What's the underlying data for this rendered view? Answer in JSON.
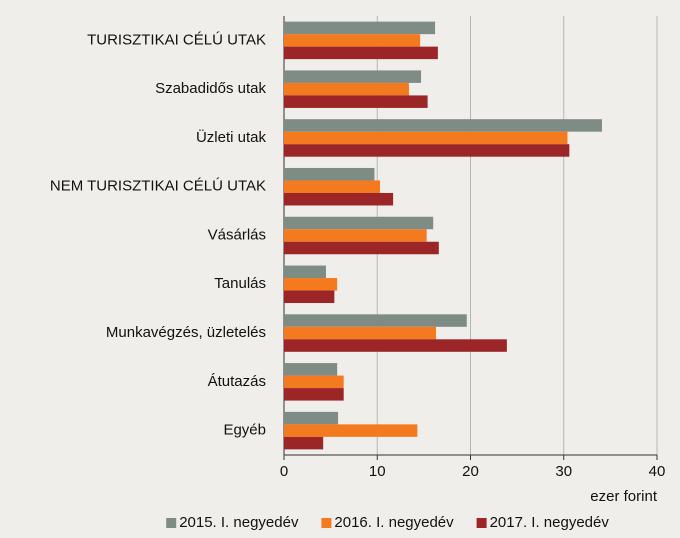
{
  "chart_data": {
    "type": "hbar",
    "categories": [
      "TURISZTIKAI CÉLÚ UTAK",
      "Szabadidős utak",
      "Üzleti utak",
      "NEM TURISZTIKAI CÉLÚ UTAK",
      "Vásárlás",
      "Tanulás",
      "Munkavégzés, üzletelés",
      "Átutazás",
      "Egyéb"
    ],
    "series": [
      {
        "name": "2015. I. negyedév",
        "color": "#7f8c85",
        "values": [
          16.2,
          14.7,
          34.1,
          9.7,
          16.0,
          4.5,
          19.6,
          5.7,
          5.8
        ]
      },
      {
        "name": "2016. I. negyedév",
        "color": "#f47a20",
        "values": [
          14.6,
          13.4,
          30.4,
          10.3,
          15.3,
          5.7,
          16.3,
          6.4,
          14.3
        ]
      },
      {
        "name": "2017. I. negyedév",
        "color": "#9b2527",
        "values": [
          16.5,
          15.4,
          30.6,
          11.7,
          16.6,
          5.4,
          23.9,
          6.4,
          4.2
        ]
      }
    ],
    "xlim": [
      0,
      40
    ],
    "xticks": [
      0,
      10,
      20,
      30,
      40
    ],
    "xlabel": "ezer forint",
    "grid": true,
    "legend": "bottom"
  }
}
